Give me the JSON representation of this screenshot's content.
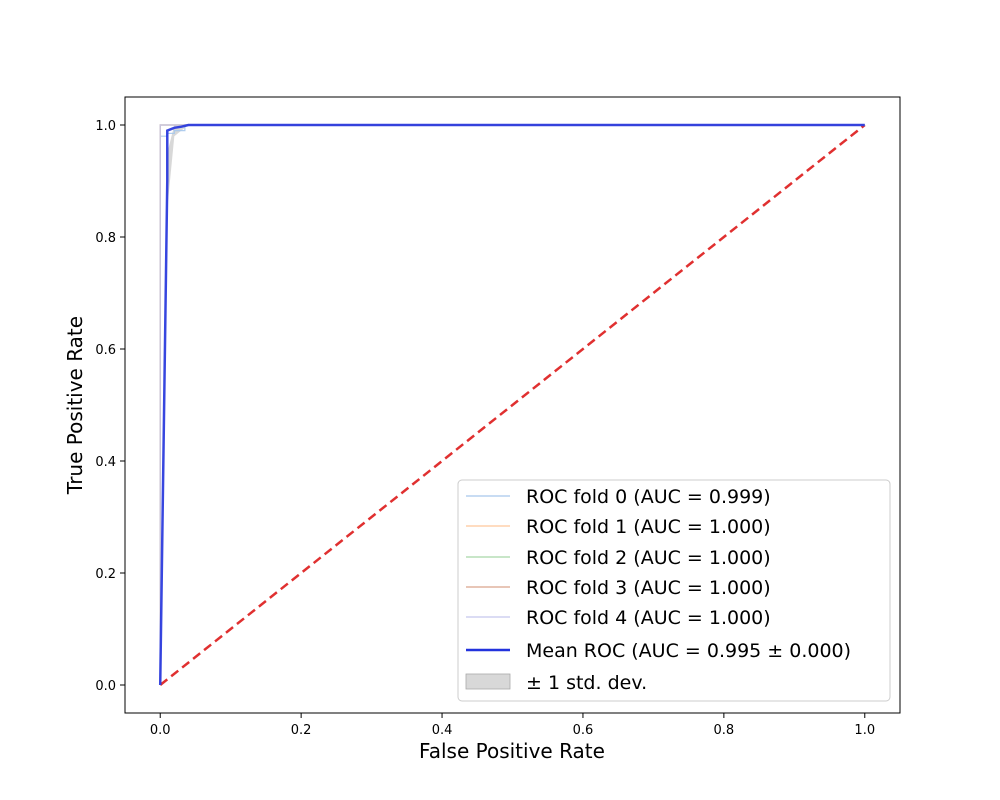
{
  "chart_data": {
    "type": "line",
    "title": "",
    "xlabel": "False Positive Rate",
    "ylabel": "True Positive Rate",
    "xlim": [
      -0.05,
      1.05
    ],
    "ylim": [
      -0.05,
      1.05
    ],
    "xticks": [
      0.0,
      0.2,
      0.4,
      0.6,
      0.8,
      1.0
    ],
    "yticks": [
      0.0,
      0.2,
      0.4,
      0.6,
      0.8,
      1.0
    ],
    "xtick_labels": [
      "0.0",
      "0.2",
      "0.4",
      "0.6",
      "0.8",
      "1.0"
    ],
    "ytick_labels": [
      "0.0",
      "0.2",
      "0.4",
      "0.6",
      "0.8",
      "1.0"
    ],
    "grid": false,
    "legend_position": "lower-right",
    "series": [
      {
        "name": "ROC fold 0 (AUC = 0.999)",
        "color": "#a6c8ec",
        "x": [
          0.0,
          0.0,
          0.01,
          0.01,
          0.02,
          0.02,
          0.035,
          0.035,
          1.0
        ],
        "y": [
          0.0,
          0.98,
          0.98,
          0.985,
          0.985,
          0.99,
          0.99,
          1.0,
          1.0
        ]
      },
      {
        "name": "ROC fold 1 (AUC = 1.000)",
        "color": "#ffc89a",
        "x": [
          0.0,
          0.0,
          1.0
        ],
        "y": [
          0.0,
          1.0,
          1.0
        ]
      },
      {
        "name": "ROC fold 2 (AUC = 1.000)",
        "color": "#a8d8a8",
        "x": [
          0.0,
          0.0,
          1.0
        ],
        "y": [
          0.0,
          1.0,
          1.0
        ]
      },
      {
        "name": "ROC fold 3 (AUC = 1.000)",
        "color": "#d9a58c",
        "x": [
          0.0,
          0.0,
          1.0
        ],
        "y": [
          0.0,
          1.0,
          1.0
        ]
      },
      {
        "name": "ROC fold 4 (AUC = 1.000)",
        "color": "#c5c6ee",
        "x": [
          0.0,
          0.0,
          1.0
        ],
        "y": [
          0.0,
          1.0,
          1.0
        ]
      },
      {
        "name": "Mean ROC (AUC = 0.995 ± 0.000)",
        "color": "#2233dd",
        "x": [
          0.0,
          0.01,
          0.01,
          0.02,
          0.03,
          0.04,
          1.0
        ],
        "y": [
          0.0,
          0.9,
          0.99,
          0.995,
          0.997,
          1.0,
          1.0
        ]
      }
    ],
    "std_band": {
      "name": "± 1 std. dev.",
      "color": "#c8c8c8",
      "x": [
        0.0,
        0.01,
        0.02,
        0.03,
        0.04,
        1.0
      ],
      "upper": [
        0.0,
        0.95,
        1.0,
        1.0,
        1.0,
        1.0
      ],
      "lower": [
        0.0,
        0.85,
        0.98,
        0.99,
        1.0,
        1.0
      ]
    },
    "chance_line": {
      "color": "#e03030",
      "x": [
        0.0,
        1.0
      ],
      "y": [
        0.0,
        1.0
      ]
    }
  }
}
